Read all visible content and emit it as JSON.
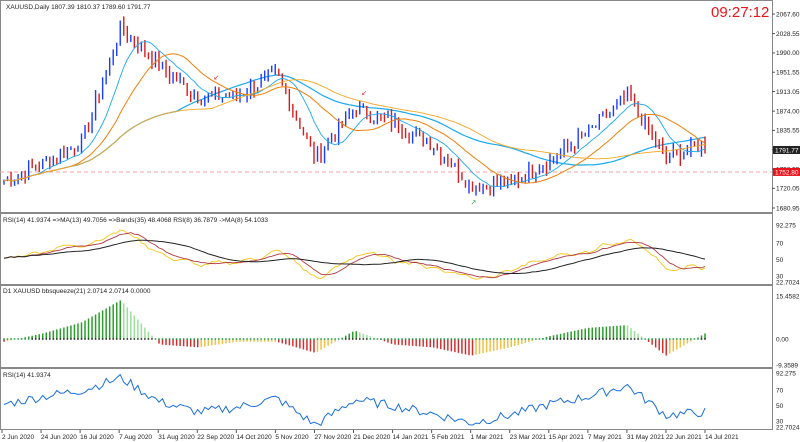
{
  "clock": "09:27:12",
  "main": {
    "header": "XAUUSD,Daily  1807.39 1810.37 1789.60 1791.77",
    "price_scale": [
      "2067.60",
      "2028.55",
      "1990.00",
      "1951.55",
      "1913.05",
      "1874.00",
      "1835.55",
      "1797.05",
      "1758.55",
      "1720.05",
      "1680.95"
    ],
    "last_price_badge": "1791.77",
    "level_badge": "1752.80",
    "level_value": 1752.8,
    "colors": {
      "bull": "#1a3cff",
      "bear": "#d81b1b",
      "fast_ma": "#1aa8ef",
      "slow_ma": "#f5a623",
      "mid_ma": "#f07f0a",
      "level": "#f0a0a0"
    }
  },
  "rsi_bands": {
    "header": "RSI(14) 41.9374  =>MA(13) 49.7056  =>Bands(35) 48.4068  RSI(8) 36.7879  ->MA(8) 54.1033",
    "scale": [
      "92.275",
      "70",
      "50",
      "30",
      "22.7024"
    ]
  },
  "bbsqueeze": {
    "header": "D1 XAUUSD bbsqueeze(21) 2.0714 2.0714 0.0000",
    "scale": [
      "15.4582",
      "0.00",
      "-9.3589"
    ]
  },
  "rsi": {
    "header": "RSI(14) 41.9374",
    "scale": [
      "92.275",
      "70",
      "50",
      "30",
      "22.7024"
    ]
  },
  "x_axis": [
    "2 Jun 2020",
    "24 Jun 2020",
    "16 Jul 2020",
    "7 Aug 2020",
    "31 Aug 2020",
    "22 Sep 2020",
    "14 Oct 2020",
    "5 Nov 2020",
    "27 Nov 2020",
    "21 Dec 2020",
    "14 Jan 2021",
    "5 Feb 2021",
    "1 Mar 2021",
    "23 Mar 2021",
    "15 Apr 2021",
    "7 May 2021",
    "31 May 2021",
    "22 Jun 2021",
    "14 Jul 2021"
  ],
  "chart_data": {
    "type": "line",
    "description_series": "daily close XAUUSD (approx.)",
    "x": [
      "2 Jun 2020",
      "24 Jun 2020",
      "16 Jul 2020",
      "7 Aug 2020",
      "31 Aug 2020",
      "22 Sep 2020",
      "14 Oct 2020",
      "5 Nov 2020",
      "27 Nov 2020",
      "21 Dec 2020",
      "14 Jan 2021",
      "5 Feb 2021",
      "1 Mar 2021",
      "23 Mar 2021",
      "15 Apr 2021",
      "7 May 2021",
      "31 May 2021",
      "22 Jun 2021",
      "14 Jul 2021"
    ],
    "series": [
      {
        "name": "XAUUSD,Daily",
        "values": [
          1735,
          1770,
          1810,
          2040,
          1965,
          1900,
          1905,
          1950,
          1780,
          1880,
          1850,
          1810,
          1725,
          1730,
          1775,
          1830,
          1905,
          1780,
          1810
        ]
      },
      {
        "name": "RSI(14)",
        "values": [
          52,
          62,
          70,
          86,
          55,
          42,
          48,
          60,
          25,
          58,
          50,
          40,
          28,
          38,
          52,
          62,
          76,
          38,
          42
        ]
      },
      {
        "name": "bbsqueeze(21)",
        "values": [
          -1,
          2,
          6,
          14,
          -2,
          -3,
          -1,
          -1,
          -5,
          3,
          -2,
          -3,
          -6,
          -3,
          1,
          4,
          5,
          -6,
          2
        ]
      }
    ],
    "ylim": [
      1680.95,
      2067.6
    ],
    "grid": false
  }
}
